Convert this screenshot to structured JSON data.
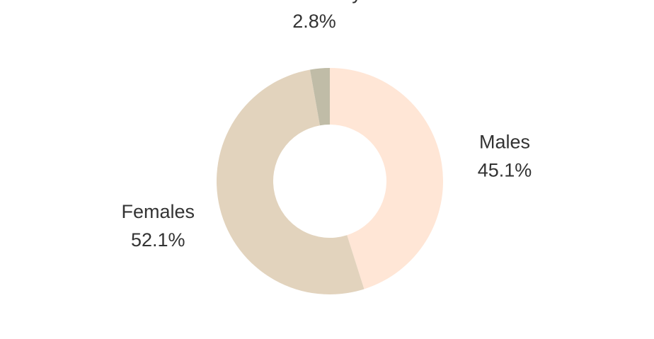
{
  "chart_data": {
    "type": "pie",
    "donut": true,
    "start_angle_deg": 0,
    "direction": "clockwise",
    "slices": [
      {
        "label": "Males",
        "value": 45.1,
        "value_label": "45.1%",
        "color": "#ffe6d6"
      },
      {
        "label": "Females",
        "value": 52.1,
        "value_label": "52.1%",
        "color": "#e2d3bd"
      },
      {
        "label": "Non Binary",
        "value": 2.8,
        "value_label": "2.8%",
        "color": "#c0bca7"
      }
    ]
  }
}
